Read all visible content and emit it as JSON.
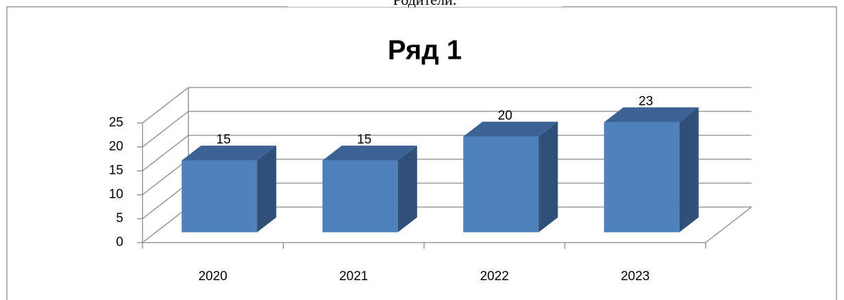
{
  "caption": "Родители.",
  "chart_data": {
    "type": "bar3d",
    "title": "Ряд 1",
    "categories": [
      "2020",
      "2021",
      "2022",
      "2023"
    ],
    "values": [
      15,
      15,
      20,
      23
    ],
    "color": "#4f81bd",
    "ylim": [
      0,
      25
    ],
    "yticks": [
      0,
      5,
      10,
      15,
      20,
      25
    ],
    "grid": true
  }
}
